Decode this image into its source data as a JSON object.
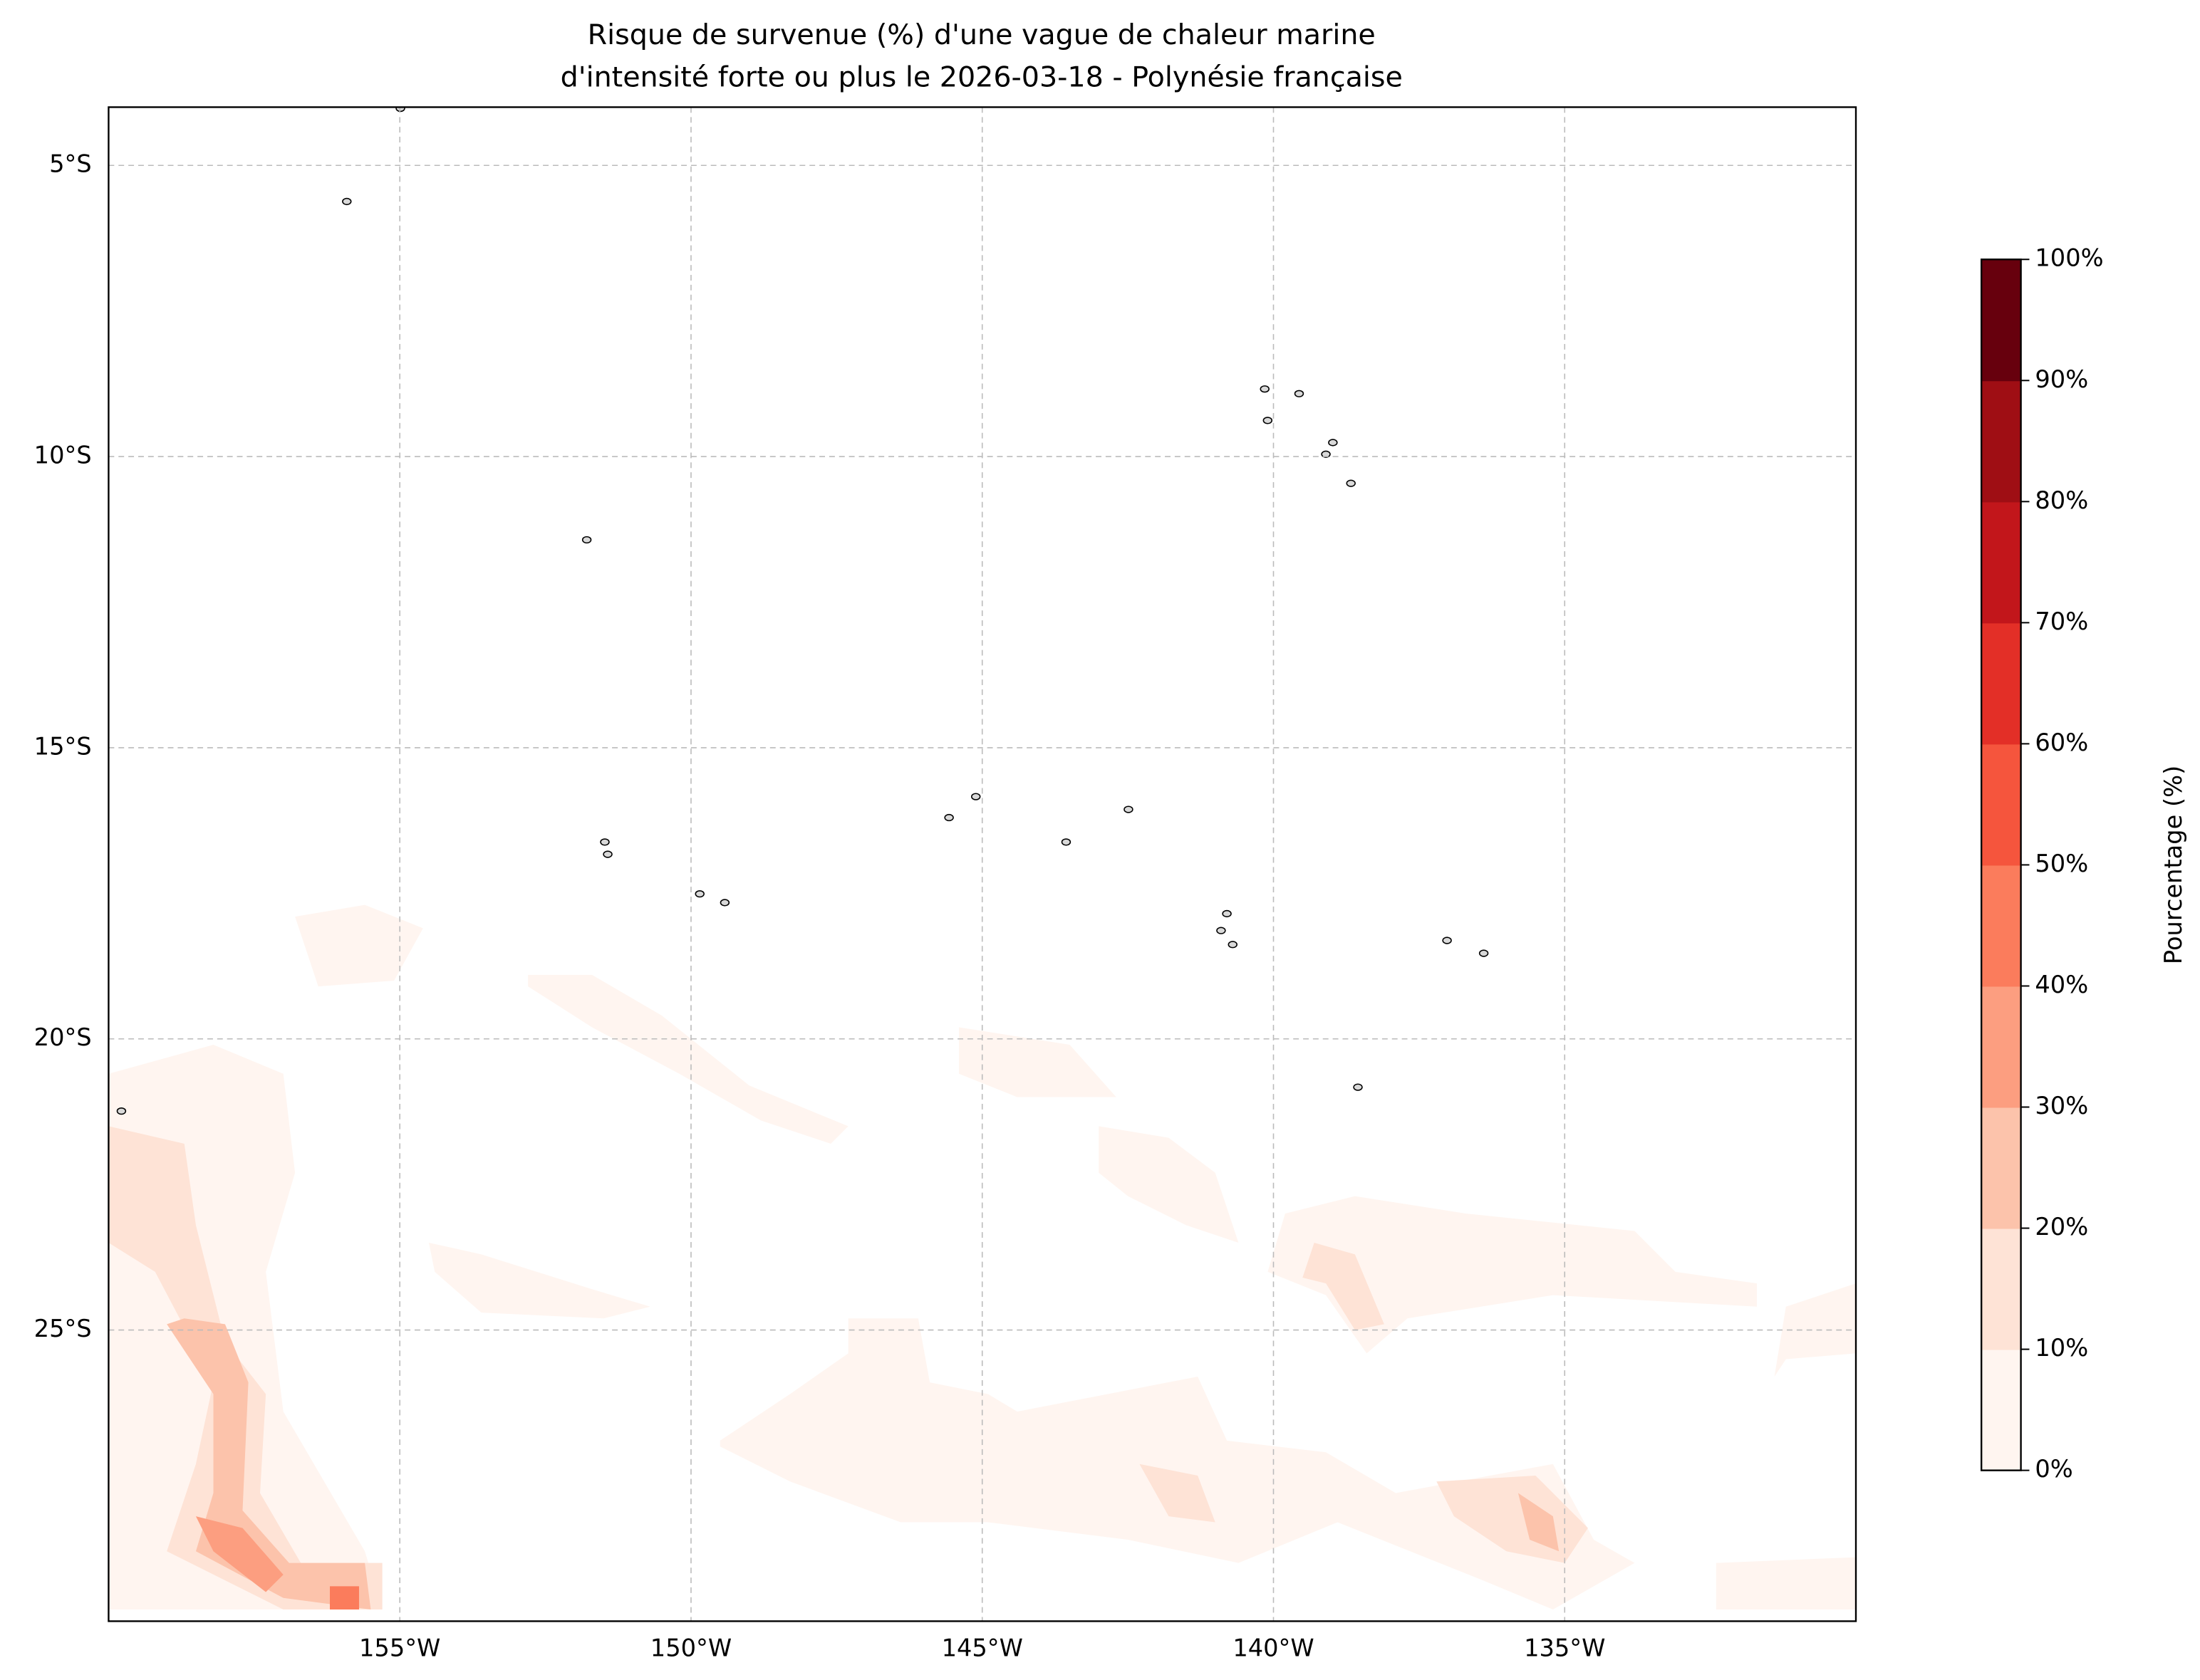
{
  "chart_data": {
    "type": "contour-map",
    "title": [
      "Risque de survenue (%) d'une vague de chaleur marine",
      "d'intensité forte ou plus le 2026-03-18 - Polynésie française"
    ],
    "xlim": [
      -160,
      -130
    ],
    "ylim": [
      -30,
      -4
    ],
    "xticks": [
      {
        "value": -155,
        "label": "155°W"
      },
      {
        "value": -150,
        "label": "150°W"
      },
      {
        "value": -145,
        "label": "145°W"
      },
      {
        "value": -140,
        "label": "140°W"
      },
      {
        "value": -135,
        "label": "135°W"
      }
    ],
    "yticks": [
      {
        "value": -5,
        "label": "5°S"
      },
      {
        "value": -10,
        "label": "10°S"
      },
      {
        "value": -15,
        "label": "15°S"
      },
      {
        "value": -20,
        "label": "20°S"
      },
      {
        "value": -25,
        "label": "25°S"
      }
    ],
    "grid": true,
    "colorbar": {
      "label": "Pourcentage (%)",
      "lim": [
        0,
        100
      ],
      "ticks": [
        {
          "value": 0,
          "label": "0%"
        },
        {
          "value": 10,
          "label": "10%"
        },
        {
          "value": 20,
          "label": "20%"
        },
        {
          "value": 30,
          "label": "30%"
        },
        {
          "value": 40,
          "label": "40%"
        },
        {
          "value": 50,
          "label": "50%"
        },
        {
          "value": 60,
          "label": "60%"
        },
        {
          "value": 70,
          "label": "70%"
        },
        {
          "value": 80,
          "label": "80%"
        },
        {
          "value": 90,
          "label": "90%"
        },
        {
          "value": 100,
          "label": "100%"
        }
      ],
      "colors": [
        "#fff5f0",
        "#fee3d6",
        "#fcc3ab",
        "#fc9e80",
        "#fb7c5c",
        "#f5553d",
        "#e32f27",
        "#c2161b",
        "#9f0e14",
        "#67000d"
      ]
    },
    "regions": [
      {
        "level": 0,
        "polygon": [
          [
            -160,
            -20.6
          ],
          [
            -158.2,
            -20.1
          ],
          [
            -157.0,
            -20.6
          ],
          [
            -156.8,
            -22.3
          ],
          [
            -157.3,
            -24.0
          ],
          [
            -157.0,
            -26.4
          ],
          [
            -155.6,
            -28.8
          ],
          [
            -155.3,
            -29.8
          ],
          [
            -160,
            -29.8
          ]
        ]
      },
      {
        "level": 10,
        "polygon": [
          [
            -160,
            -21.5
          ],
          [
            -158.7,
            -21.8
          ],
          [
            -158.5,
            -23.2
          ],
          [
            -158.0,
            -25.2
          ],
          [
            -157.3,
            -26.1
          ],
          [
            -157.4,
            -27.8
          ],
          [
            -156.7,
            -29.0
          ],
          [
            -155.3,
            -29.0
          ],
          [
            -155.3,
            -29.8
          ],
          [
            -157.0,
            -29.8
          ],
          [
            -159.0,
            -28.8
          ],
          [
            -158.5,
            -27.3
          ],
          [
            -158.2,
            -25.9
          ],
          [
            -159.2,
            -24.0
          ],
          [
            -160,
            -23.5
          ]
        ]
      },
      {
        "level": 20,
        "polygon": [
          [
            -158.7,
            -24.8
          ],
          [
            -158.0,
            -24.9
          ],
          [
            -157.6,
            -25.9
          ],
          [
            -157.7,
            -28.1
          ],
          [
            -156.9,
            -29.0
          ],
          [
            -155.6,
            -29.0
          ],
          [
            -155.5,
            -29.8
          ],
          [
            -157.0,
            -29.6
          ],
          [
            -158.5,
            -28.8
          ],
          [
            -158.2,
            -27.8
          ],
          [
            -158.2,
            -26.1
          ],
          [
            -159.0,
            -24.9
          ]
        ]
      },
      {
        "level": 30,
        "polygon": [
          [
            -158.5,
            -28.2
          ],
          [
            -157.7,
            -28.4
          ],
          [
            -157.0,
            -29.2
          ],
          [
            -157.3,
            -29.5
          ],
          [
            -158.2,
            -28.8
          ]
        ]
      },
      {
        "level": 40,
        "polygon": [
          [
            -156.2,
            -29.4
          ],
          [
            -155.7,
            -29.4
          ],
          [
            -155.7,
            -29.8
          ],
          [
            -156.2,
            -29.8
          ]
        ]
      },
      {
        "level": 0,
        "polygon": [
          [
            -152.8,
            -18.9
          ],
          [
            -151.7,
            -18.9
          ],
          [
            -150.5,
            -19.6
          ],
          [
            -149.0,
            -20.8
          ],
          [
            -147.3,
            -21.5
          ],
          [
            -147.6,
            -21.8
          ],
          [
            -148.8,
            -21.4
          ],
          [
            -150.2,
            -20.6
          ],
          [
            -151.7,
            -19.8
          ],
          [
            -152.8,
            -19.1
          ]
        ]
      },
      {
        "level": 0,
        "polygon": [
          [
            -145.4,
            -19.8
          ],
          [
            -143.5,
            -20.1
          ],
          [
            -142.7,
            -21.0
          ],
          [
            -144.4,
            -21.0
          ],
          [
            -145.4,
            -20.6
          ]
        ]
      },
      {
        "level": 0,
        "polygon": [
          [
            -143.0,
            -21.5
          ],
          [
            -141.8,
            -21.7
          ],
          [
            -141.0,
            -22.3
          ],
          [
            -140.6,
            -23.5
          ],
          [
            -141.5,
            -23.2
          ],
          [
            -142.5,
            -22.7
          ],
          [
            -143.0,
            -22.3
          ]
        ]
      },
      {
        "level": 0,
        "polygon": [
          [
            -139.8,
            -23.0
          ],
          [
            -138.6,
            -22.7
          ],
          [
            -136.7,
            -23.0
          ],
          [
            -133.8,
            -23.3
          ],
          [
            -133.1,
            -24.0
          ],
          [
            -131.7,
            -24.2
          ],
          [
            -131.7,
            -24.6
          ],
          [
            -135.2,
            -24.4
          ],
          [
            -137.7,
            -24.8
          ],
          [
            -138.4,
            -25.4
          ],
          [
            -139.1,
            -24.4
          ],
          [
            -140.1,
            -24.0
          ]
        ]
      },
      {
        "level": 10,
        "polygon": [
          [
            -139.3,
            -23.5
          ],
          [
            -138.6,
            -23.7
          ],
          [
            -138.1,
            -24.9
          ],
          [
            -138.6,
            -25.0
          ],
          [
            -139.1,
            -24.2
          ],
          [
            -139.5,
            -24.1
          ]
        ]
      },
      {
        "level": 0,
        "polygon": [
          [
            -149.5,
            -26.9
          ],
          [
            -148.3,
            -26.1
          ],
          [
            -147.3,
            -25.4
          ],
          [
            -147.3,
            -24.8
          ],
          [
            -146.1,
            -24.8
          ],
          [
            -145.9,
            -25.9
          ],
          [
            -144.9,
            -26.1
          ],
          [
            -144.4,
            -26.4
          ],
          [
            -141.3,
            -25.8
          ],
          [
            -140.8,
            -26.9
          ],
          [
            -139.1,
            -27.1
          ],
          [
            -137.9,
            -27.8
          ],
          [
            -135.2,
            -27.3
          ],
          [
            -134.5,
            -28.6
          ],
          [
            -133.8,
            -29.0
          ],
          [
            -135.2,
            -29.8
          ],
          [
            -136.4,
            -29.3
          ],
          [
            -138.9,
            -28.3
          ],
          [
            -140.6,
            -29.0
          ],
          [
            -142.5,
            -28.6
          ],
          [
            -144.9,
            -28.3
          ],
          [
            -146.4,
            -28.3
          ],
          [
            -148.3,
            -27.6
          ],
          [
            -149.5,
            -27.0
          ]
        ]
      },
      {
        "level": 10,
        "polygon": [
          [
            -142.3,
            -27.3
          ],
          [
            -141.3,
            -27.5
          ],
          [
            -141.0,
            -28.3
          ],
          [
            -141.8,
            -28.2
          ]
        ]
      },
      {
        "level": 10,
        "polygon": [
          [
            -137.2,
            -27.6
          ],
          [
            -135.5,
            -27.5
          ],
          [
            -134.6,
            -28.4
          ],
          [
            -135.0,
            -29.0
          ],
          [
            -136.0,
            -28.8
          ],
          [
            -136.9,
            -28.2
          ]
        ]
      },
      {
        "level": 20,
        "polygon": [
          [
            -135.8,
            -27.8
          ],
          [
            -135.2,
            -28.2
          ],
          [
            -135.1,
            -28.8
          ],
          [
            -135.6,
            -28.6
          ]
        ]
      },
      {
        "level": 0,
        "polygon": [
          [
            -132.4,
            -29.0
          ],
          [
            -130.0,
            -28.9
          ],
          [
            -130.0,
            -29.8
          ],
          [
            -132.4,
            -29.8
          ]
        ]
      },
      {
        "level": 0,
        "polygon": [
          [
            -131.2,
            -24.6
          ],
          [
            -130.0,
            -24.2
          ],
          [
            -130.0,
            -25.4
          ],
          [
            -131.2,
            -25.5
          ],
          [
            -131.4,
            -25.8
          ]
        ]
      },
      {
        "level": 0,
        "polygon": [
          [
            -156.8,
            -17.9
          ],
          [
            -155.6,
            -17.7
          ],
          [
            -154.6,
            -18.1
          ],
          [
            -155.1,
            -19.0
          ],
          [
            -156.4,
            -19.1
          ]
        ]
      },
      {
        "level": 0,
        "polygon": [
          [
            -154.5,
            -23.5
          ],
          [
            -153.6,
            -23.7
          ],
          [
            -151.7,
            -24.3
          ],
          [
            -150.7,
            -24.6
          ],
          [
            -151.5,
            -24.8
          ],
          [
            -153.6,
            -24.7
          ],
          [
            -154.4,
            -24.0
          ]
        ]
      }
    ],
    "islands": [
      [
        -140.15,
        -8.84
      ],
      [
        -139.56,
        -8.92
      ],
      [
        -140.1,
        -9.38
      ],
      [
        -138.98,
        -9.76
      ],
      [
        -139.1,
        -9.96
      ],
      [
        -138.67,
        -10.46
      ],
      [
        -151.79,
        -11.43
      ],
      [
        -155.91,
        -5.62
      ],
      [
        -154.99,
        -4.02
      ],
      [
        -151.48,
        -16.62
      ],
      [
        -151.43,
        -16.83
      ],
      [
        -149.85,
        -17.51
      ],
      [
        -149.42,
        -17.66
      ],
      [
        -145.57,
        -16.2
      ],
      [
        -145.11,
        -15.84
      ],
      [
        -143.56,
        -16.62
      ],
      [
        -142.49,
        -16.06
      ],
      [
        -140.8,
        -17.85
      ],
      [
        -140.9,
        -18.14
      ],
      [
        -140.7,
        -18.38
      ],
      [
        -137.02,
        -18.31
      ],
      [
        -136.39,
        -18.53
      ],
      [
        -138.55,
        -20.83
      ],
      [
        -159.78,
        -21.24
      ]
    ]
  }
}
